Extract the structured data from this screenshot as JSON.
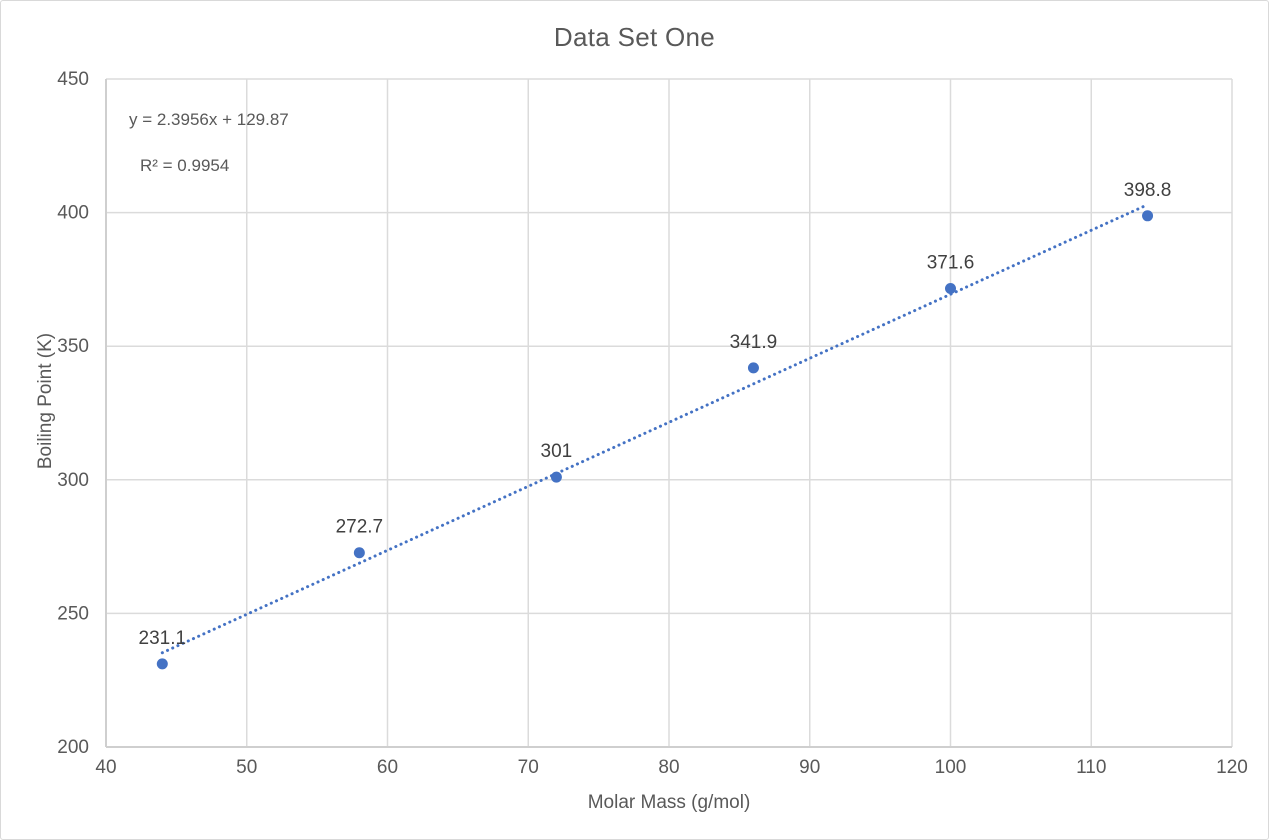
{
  "chart_data": {
    "type": "scatter",
    "title": "Data Set One",
    "xlabel": "Molar Mass (g/mol)",
    "ylabel": "Boiling Point (K)",
    "x": [
      44,
      58,
      72,
      86,
      100,
      114
    ],
    "y": [
      231.1,
      272.7,
      301,
      341.9,
      371.6,
      398.8
    ],
    "point_labels": [
      "231.1",
      "272.7",
      "301",
      "341.9",
      "371.6",
      "398.8"
    ],
    "xlim": [
      40,
      120
    ],
    "ylim": [
      200,
      450
    ],
    "x_ticks": [
      40,
      50,
      60,
      70,
      80,
      90,
      100,
      110,
      120
    ],
    "y_ticks": [
      200,
      250,
      300,
      350,
      400,
      450
    ],
    "grid": true,
    "legend": "none",
    "trendline": {
      "slope": 2.3956,
      "intercept": 129.87,
      "x_start": 44,
      "x_end": 114,
      "style": "dotted",
      "equation_text": "y = 2.3956x + 129.87",
      "r2_text": "R² = 0.9954"
    },
    "colors": {
      "point": "#4472C4",
      "trendline": "#4472C4",
      "gridline": "#DBDBDB",
      "axis_line": "#CFCFCF",
      "tick_text": "#595959",
      "title_text": "#595959",
      "data_label_text": "#404040"
    }
  }
}
